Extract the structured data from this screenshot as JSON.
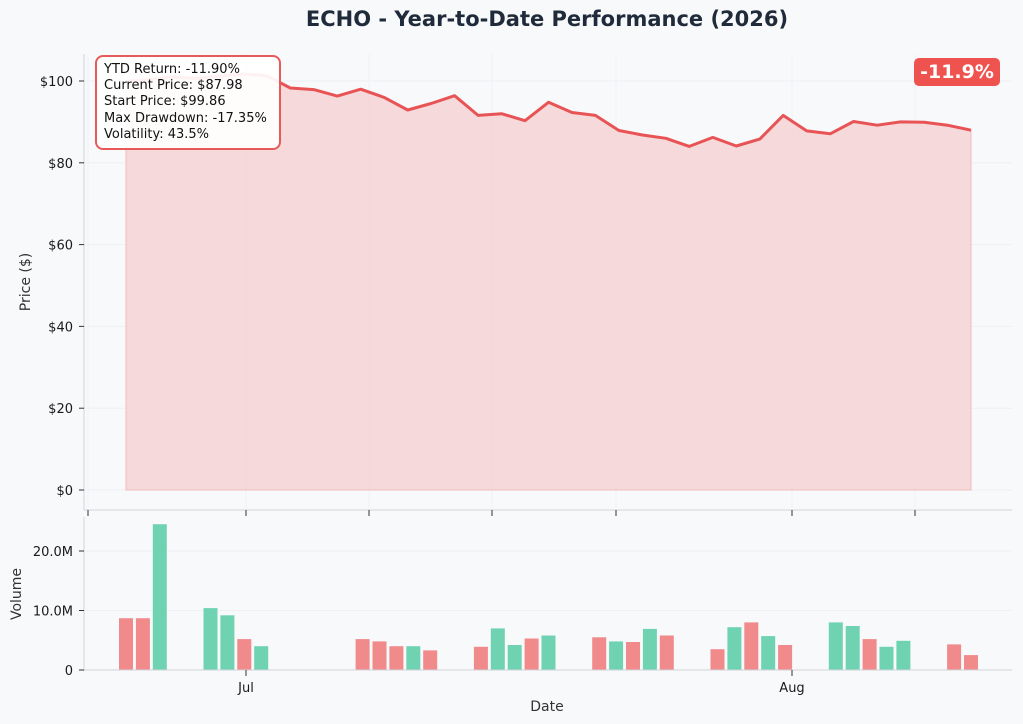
{
  "chart_data": {
    "title": "ECHO - Year-to-Date Performance (2026)",
    "price_panel": {
      "type": "area",
      "ylabel": "Price ($)",
      "ylim": [
        0,
        106
      ],
      "y_ticks": [
        {
          "value": 0,
          "label": "$0"
        },
        {
          "value": 20,
          "label": "$20"
        },
        {
          "value": 40,
          "label": "$40"
        },
        {
          "value": 60,
          "label": "$60"
        },
        {
          "value": 80,
          "label": "$80"
        },
        {
          "value": 100,
          "label": "$100"
        }
      ],
      "x": [
        "2026-06-22",
        "2026-06-23",
        "2026-06-24",
        "2026-06-25",
        "2026-06-26",
        "2026-06-29",
        "2026-06-30",
        "2026-07-01",
        "2026-07-02",
        "2026-07-03",
        "2026-07-06",
        "2026-07-07",
        "2026-07-08",
        "2026-07-09",
        "2026-07-10",
        "2026-07-13",
        "2026-07-14",
        "2026-07-15",
        "2026-07-16",
        "2026-07-17",
        "2026-07-20",
        "2026-07-21",
        "2026-07-22",
        "2026-07-23",
        "2026-07-24",
        "2026-07-27",
        "2026-07-28",
        "2026-07-29",
        "2026-07-30",
        "2026-07-31",
        "2026-08-03",
        "2026-08-04",
        "2026-08-05",
        "2026-08-06",
        "2026-08-07",
        "2026-08-10",
        "2026-08-11"
      ],
      "values": [
        99.86,
        100.4,
        101.0,
        100.6,
        101.2,
        101.7,
        101.3,
        98.3,
        97.9,
        96.3,
        98.0,
        96.0,
        92.9,
        94.5,
        96.4,
        91.6,
        92.0,
        90.3,
        94.8,
        92.3,
        91.6,
        87.9,
        86.8,
        86.0,
        84.0,
        86.2,
        84.1,
        85.8,
        91.6,
        87.8,
        87.1,
        90.1,
        89.2,
        90.0,
        89.9,
        89.2,
        87.98
      ],
      "line_color": "#e85455",
      "fill_color": "#f6cfd0"
    },
    "volume_panel": {
      "type": "bar",
      "ylabel": "Volume",
      "xlabel": "Date",
      "ylim": [
        0,
        26
      ],
      "unit": "millions",
      "y_ticks": [
        {
          "value": 0,
          "label": "0"
        },
        {
          "value": 10,
          "label": "10.0M"
        },
        {
          "value": 20,
          "label": "20.0M"
        }
      ],
      "x_ticks": [
        {
          "date": "2026-07-01",
          "label": "Jul"
        },
        {
          "date": "2026-08-01",
          "label": "Aug"
        }
      ],
      "bars": [
        {
          "date": "2026-06-22",
          "value": 8.7,
          "direction": "down"
        },
        {
          "date": "2026-06-23",
          "value": 8.7,
          "direction": "down"
        },
        {
          "date": "2026-06-24",
          "value": 24.5,
          "direction": "up"
        },
        {
          "date": "2026-06-27",
          "value": 10.4,
          "direction": "up"
        },
        {
          "date": "2026-06-28",
          "value": 9.2,
          "direction": "up"
        },
        {
          "date": "2026-06-29",
          "value": 5.2,
          "direction": "down"
        },
        {
          "date": "2026-06-30",
          "value": 4.0,
          "direction": "up"
        },
        {
          "date": "2026-07-06",
          "value": 5.2,
          "direction": "down"
        },
        {
          "date": "2026-07-07",
          "value": 4.8,
          "direction": "down"
        },
        {
          "date": "2026-07-08",
          "value": 4.0,
          "direction": "down"
        },
        {
          "date": "2026-07-09",
          "value": 4.0,
          "direction": "up"
        },
        {
          "date": "2026-07-10",
          "value": 3.3,
          "direction": "down"
        },
        {
          "date": "2026-07-13",
          "value": 3.9,
          "direction": "down"
        },
        {
          "date": "2026-07-14",
          "value": 7.0,
          "direction": "up"
        },
        {
          "date": "2026-07-15",
          "value": 4.2,
          "direction": "up"
        },
        {
          "date": "2026-07-16",
          "value": 5.3,
          "direction": "down"
        },
        {
          "date": "2026-07-17",
          "value": 5.8,
          "direction": "up"
        },
        {
          "date": "2026-07-20",
          "value": 5.5,
          "direction": "down"
        },
        {
          "date": "2026-07-21",
          "value": 4.8,
          "direction": "up"
        },
        {
          "date": "2026-07-22",
          "value": 4.7,
          "direction": "down"
        },
        {
          "date": "2026-07-23",
          "value": 6.9,
          "direction": "up"
        },
        {
          "date": "2026-07-24",
          "value": 5.8,
          "direction": "down"
        },
        {
          "date": "2026-07-27",
          "value": 3.5,
          "direction": "down"
        },
        {
          "date": "2026-07-28",
          "value": 7.2,
          "direction": "up"
        },
        {
          "date": "2026-07-29",
          "value": 8.0,
          "direction": "down"
        },
        {
          "date": "2026-07-30",
          "value": 5.7,
          "direction": "up"
        },
        {
          "date": "2026-07-31",
          "value": 4.2,
          "direction": "down"
        },
        {
          "date": "2026-08-03",
          "value": 8.0,
          "direction": "up"
        },
        {
          "date": "2026-08-04",
          "value": 7.4,
          "direction": "up"
        },
        {
          "date": "2026-08-05",
          "value": 5.2,
          "direction": "down"
        },
        {
          "date": "2026-08-06",
          "value": 3.9,
          "direction": "up"
        },
        {
          "date": "2026-08-07",
          "value": 4.9,
          "direction": "up"
        },
        {
          "date": "2026-08-10",
          "value": 4.3,
          "direction": "down"
        },
        {
          "date": "2026-08-11",
          "value": 2.5,
          "direction": "down"
        }
      ],
      "up_color": "#6fd3b2",
      "down_color": "#f08a8b"
    },
    "stats": [
      "YTD Return: -11.90%",
      "Current Price: $87.98",
      "Start Price: $99.86",
      "Max Drawdown: -17.35%",
      "Volatility: 43.5%"
    ],
    "badge": {
      "text": "-11.9%",
      "color": "#ef5350"
    },
    "grid": true
  }
}
